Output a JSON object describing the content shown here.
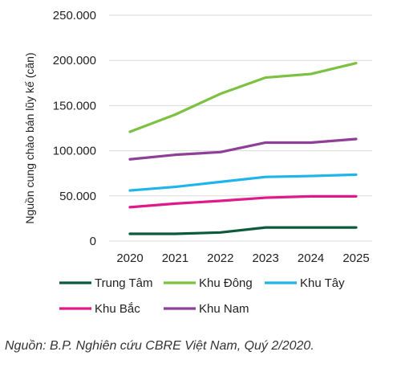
{
  "chart_data": {
    "type": "line",
    "ylabel": "Nguồn cung chào bán lũy kế (căn)",
    "xlabel": "",
    "x": [
      "2020",
      "2021",
      "2022",
      "2023",
      "2024",
      "2025"
    ],
    "ylim": [
      0,
      250000
    ],
    "yticks": [
      0,
      50000,
      100000,
      150000,
      200000,
      250000
    ],
    "ytick_labels": [
      "0",
      "50.000",
      "100.000",
      "150.000",
      "200.000",
      "250.000"
    ],
    "grid": true,
    "legend_position": "bottom",
    "series": [
      {
        "name": "Trung Tâm",
        "color": "#0b5a3c",
        "values": [
          8000,
          8000,
          9500,
          15000,
          15000,
          15000
        ]
      },
      {
        "name": "Khu Đông",
        "color": "#7cc142",
        "values": [
          121000,
          140000,
          163000,
          181000,
          185000,
          197000
        ]
      },
      {
        "name": "Khu Tây",
        "color": "#1fb5e8",
        "values": [
          56000,
          60000,
          65500,
          71000,
          72000,
          73500
        ]
      },
      {
        "name": "Khu Bắc",
        "color": "#e0198a",
        "values": [
          37500,
          41500,
          44500,
          48000,
          49500,
          49500
        ]
      },
      {
        "name": "Khu Nam",
        "color": "#8e3f96",
        "values": [
          90500,
          95500,
          98500,
          109000,
          109000,
          113000
        ]
      }
    ]
  },
  "caption": "Nguồn: B.P. Nghiên cứu CBRE Việt Nam, Quý 2/2020."
}
